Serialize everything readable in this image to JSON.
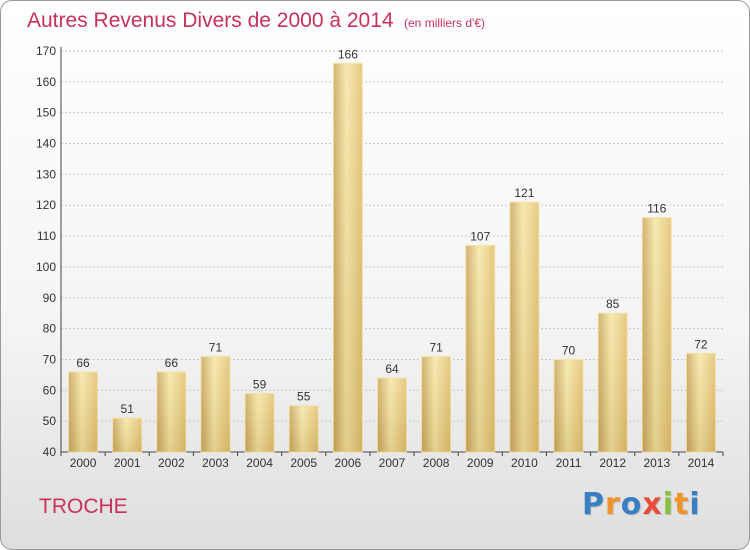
{
  "chart_data": {
    "type": "bar",
    "title": "Autres Revenus Divers de 2000 à 2014",
    "subtitle": "(en milliers d'€)",
    "categories": [
      "2000",
      "2001",
      "2002",
      "2003",
      "2004",
      "2005",
      "2006",
      "2007",
      "2008",
      "2009",
      "2010",
      "2011",
      "2012",
      "2013",
      "2014"
    ],
    "values": [
      66,
      51,
      66,
      71,
      59,
      55,
      166,
      64,
      71,
      107,
      121,
      70,
      85,
      116,
      72
    ],
    "ylim": [
      40,
      170
    ],
    "yticks": [
      40,
      50,
      60,
      70,
      80,
      90,
      100,
      110,
      120,
      130,
      140,
      150,
      160,
      170
    ],
    "grid": "horizontal dotted",
    "bar_color": "#e2c06e",
    "bar_highlight": "#f6e6a4",
    "bar_shadow": "#c9a55a"
  },
  "footer": {
    "commune": "TROCHE",
    "brand": {
      "letters": [
        "P",
        "r",
        "o",
        "x",
        "i",
        "t",
        "i"
      ],
      "colors": [
        "#3a7fc1",
        "#f0932b",
        "#3a7fc1",
        "#e84c3d",
        "#8bbf3f",
        "#f0932b",
        "#3a7fc1"
      ]
    }
  }
}
